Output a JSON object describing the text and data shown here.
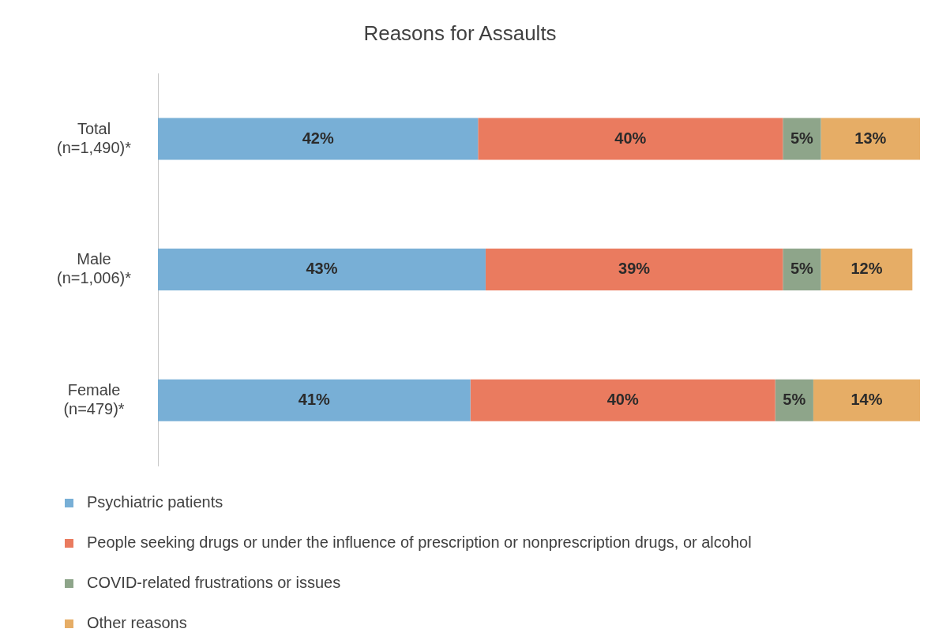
{
  "chart_data": {
    "type": "bar",
    "orientation": "horizontal",
    "stacked": true,
    "title": "Reasons for Assaults",
    "categories": [
      "Total (n=1,490)*",
      "Male (n=1,006)*",
      "Female (n=479)*"
    ],
    "series": [
      {
        "name": "Psychiatric patients",
        "color": "#78afd6",
        "values": [
          42,
          43,
          41
        ],
        "value_labels": [
          "42%",
          "43%",
          "41%"
        ]
      },
      {
        "name": "People seeking drugs or under the influence of prescription or nonprescription drugs, or alcohol",
        "color": "#ea7b5f",
        "values": [
          40,
          39,
          40
        ],
        "value_labels": [
          "40%",
          "39%",
          "40%"
        ]
      },
      {
        "name": "COVID-related frustrations or issues",
        "color": "#8ea58a",
        "values": [
          5,
          5,
          5
        ],
        "value_labels": [
          "5%",
          "5%",
          "5%"
        ]
      },
      {
        "name": "Other reasons",
        "color": "#e6ad66",
        "values": [
          13,
          12,
          14
        ],
        "value_labels": [
          "13%",
          "12%",
          "14%"
        ]
      }
    ],
    "xlim": [
      0,
      100
    ],
    "tick_labels": "y",
    "legend": "bottom left"
  }
}
